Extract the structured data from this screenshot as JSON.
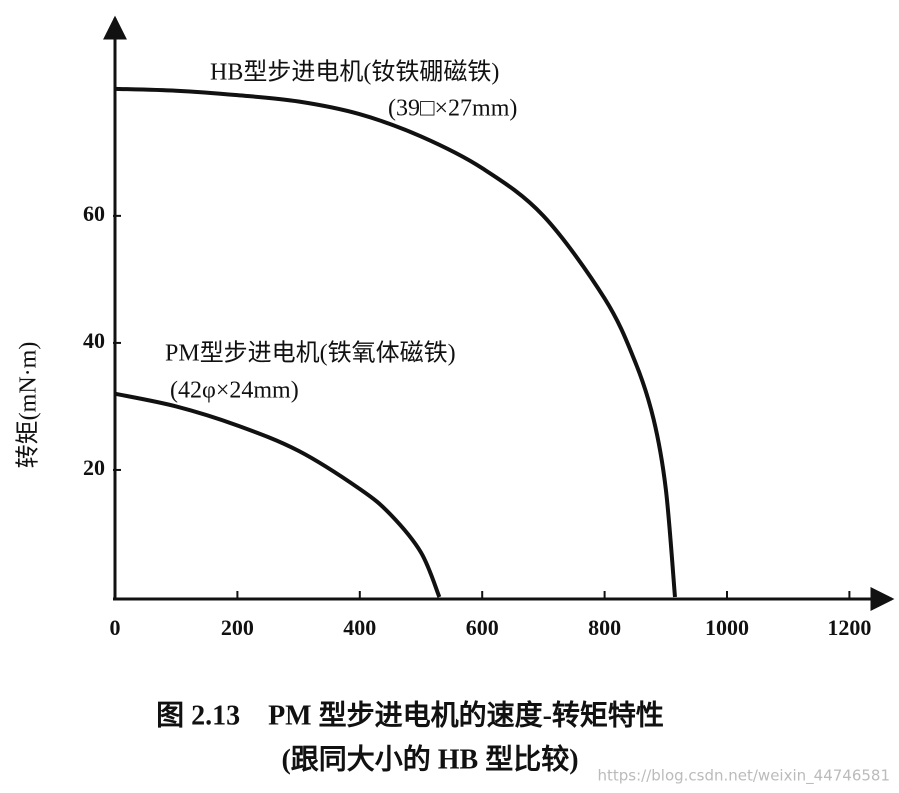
{
  "chart_data": {
    "type": "line",
    "y_label": "转矩(mN·m)",
    "caption": [
      "图 2.13　PM 型步进电机的速度-转矩特性",
      "(跟同大小的 HB 型比较)"
    ],
    "watermark": "https://blog.csdn.net/weixin_44746581",
    "series": [
      {
        "name": "HB型步进电机(钕铁硼磁铁)",
        "note": "(39□×27mm)",
        "color": "#111111",
        "x": [
          0,
          100,
          200,
          300,
          400,
          500,
          600,
          700,
          800,
          850,
          880,
          900,
          915
        ],
        "values": [
          80,
          79.7,
          79,
          78,
          76,
          72.5,
          67.5,
          60,
          47,
          37,
          28,
          17,
          0
        ]
      },
      {
        "name": "PM型步进电机(铁氧体磁铁)",
        "note": "(42φ×24mm)",
        "color": "#111111",
        "x": [
          0,
          100,
          200,
          300,
          400,
          450,
          500,
          530
        ],
        "values": [
          32,
          30,
          27,
          23,
          17,
          13,
          7,
          0
        ]
      }
    ],
    "xlim": [
      0,
      1250
    ],
    "ylim": [
      0,
      88
    ],
    "xticks": [
      0,
      200,
      400,
      600,
      800,
      1000,
      1200
    ],
    "yticks": [
      20,
      40,
      60
    ]
  }
}
